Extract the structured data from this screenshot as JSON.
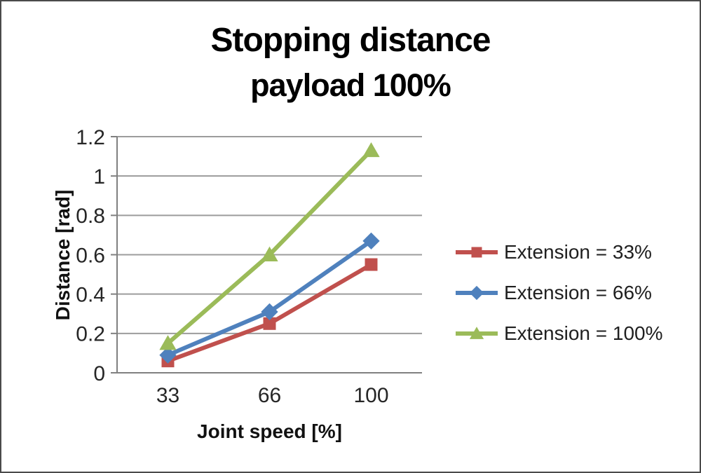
{
  "chart_data": {
    "type": "line",
    "title": "Stopping distance",
    "subtitle": "payload 100%",
    "xlabel": "Joint speed [%]",
    "ylabel": "Distance [rad]",
    "categories": [
      "33",
      "66",
      "100"
    ],
    "series": [
      {
        "name": "Extension = 33%",
        "color": "#C0504D",
        "marker": "square",
        "values": [
          0.06,
          0.25,
          0.55
        ]
      },
      {
        "name": "Extension = 66%",
        "color": "#4F81BD",
        "marker": "diamond",
        "values": [
          0.09,
          0.31,
          0.67
        ]
      },
      {
        "name": "Extension = 100%",
        "color": "#9BBB59",
        "marker": "triangle",
        "values": [
          0.15,
          0.6,
          1.13
        ]
      }
    ],
    "ylim": [
      0,
      1.2
    ],
    "yticks": {
      "values": [
        0,
        0.2,
        0.4,
        0.6,
        0.8,
        1,
        1.2
      ],
      "labels": [
        "0",
        "0.2",
        "0.4",
        "0.6",
        "0.8",
        "1",
        "1.2"
      ]
    },
    "grid": true,
    "legend_position": "right",
    "axis_color": "#808080",
    "gridline_color": "#9c9c9c"
  }
}
